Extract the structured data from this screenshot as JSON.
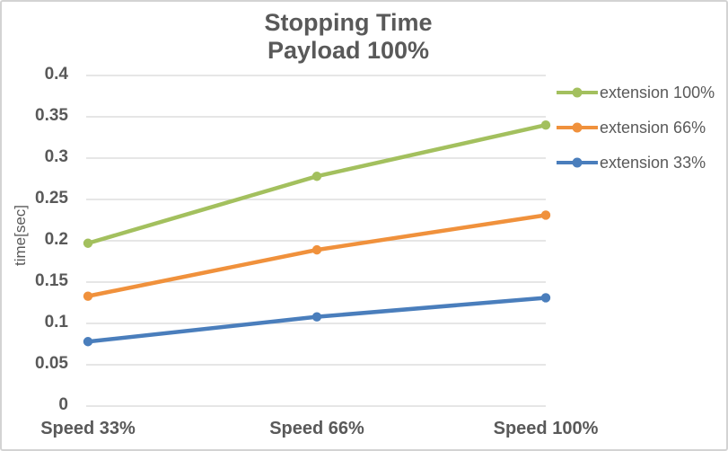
{
  "window": {
    "background": "#ffffff",
    "border_color": "#d3d3d3"
  },
  "chart_data": {
    "type": "line",
    "title": "Stopping Time",
    "subtitle": "Payload 100%",
    "xlabel": "",
    "ylabel": "time[sec]",
    "categories": [
      "Speed 33%",
      "Speed 66%",
      "Speed 100%"
    ],
    "series": [
      {
        "name": "extension 100%",
        "color": "#a3c05e",
        "values": [
          0.197,
          0.278,
          0.34
        ]
      },
      {
        "name": "extension 66%",
        "color": "#f0913c",
        "values": [
          0.133,
          0.189,
          0.231
        ]
      },
      {
        "name": "extension 33%",
        "color": "#4a7ebc",
        "values": [
          0.078,
          0.108,
          0.131
        ]
      }
    ],
    "ylim": [
      0,
      0.4
    ],
    "ytick_step": 0.05,
    "yticks": [
      "0.4",
      "0.35",
      "0.3",
      "0.25",
      "0.2",
      "0.15",
      "0.1",
      "0.05",
      "0"
    ],
    "grid": true,
    "gridline_color": "#d6d6d6",
    "text_color": "#595959",
    "legend_position": "right",
    "markers": true
  }
}
